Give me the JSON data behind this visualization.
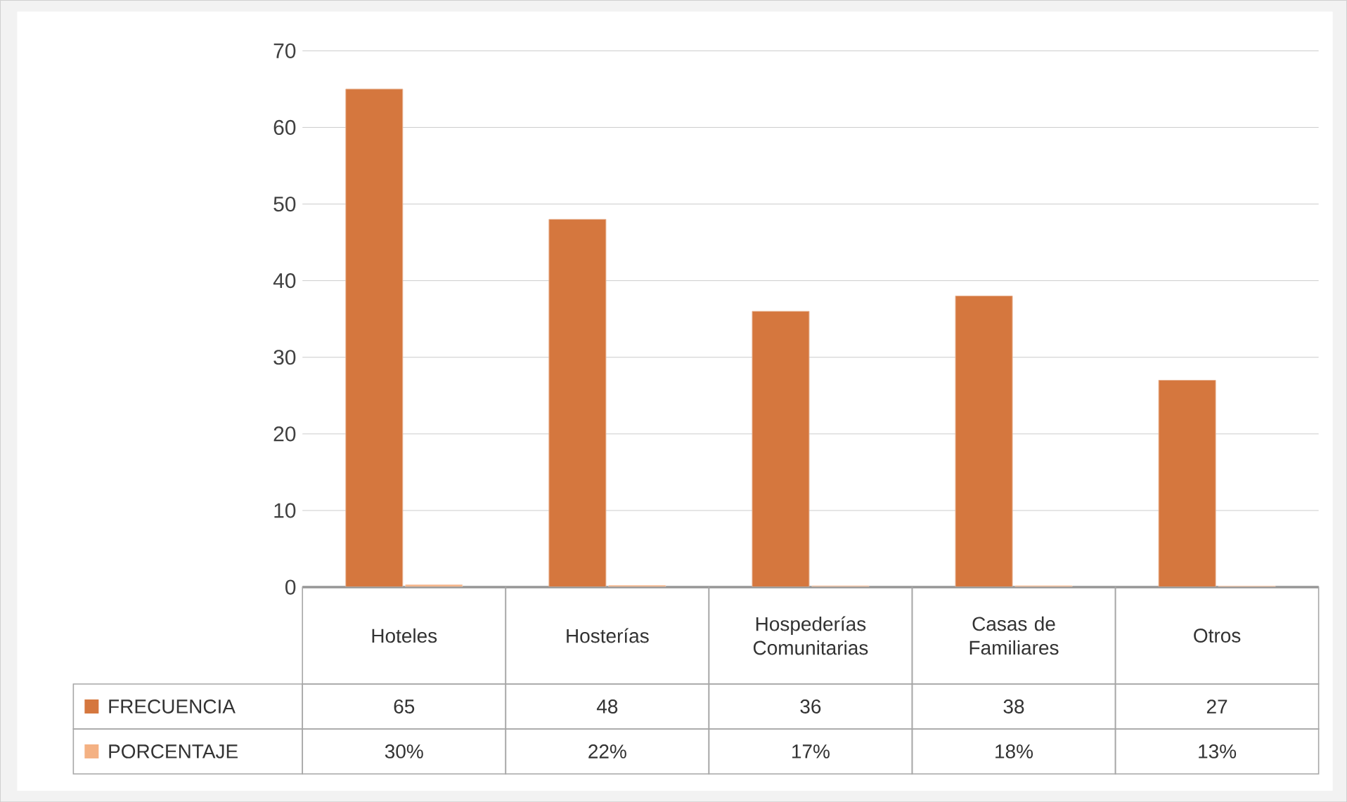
{
  "chart_data": {
    "type": "bar",
    "categories": [
      "Hoteles",
      "Hosterías",
      "Hospederías Comunitarias",
      "Casas de Familiares",
      "Otros"
    ],
    "series": [
      {
        "name": "FRECUENCIA",
        "color": "#d5773e",
        "values": [
          65,
          48,
          36,
          38,
          27
        ],
        "value_labels": [
          "65",
          "48",
          "36",
          "38",
          "27"
        ]
      },
      {
        "name": "PORCENTAJE",
        "color": "#f4b183",
        "values": [
          0.3,
          0.22,
          0.17,
          0.18,
          0.13
        ],
        "value_labels": [
          "30%",
          "22%",
          "17%",
          "18%",
          "13%"
        ]
      }
    ],
    "ylim": [
      0,
      70
    ],
    "yticks": [
      0,
      10,
      20,
      30,
      40,
      50,
      60,
      70
    ],
    "grid": "y",
    "legend": "bottom"
  }
}
